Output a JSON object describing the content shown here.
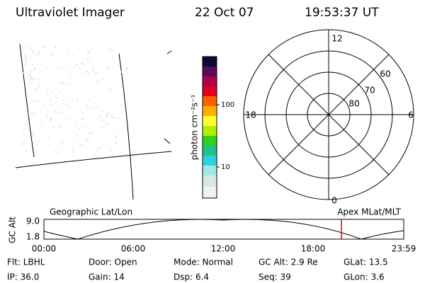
{
  "header": {
    "title": "Ultraviolet Imager",
    "date": "22 Oct 07",
    "time": "19:53:37 UT"
  },
  "colorbar": {
    "label": "photon cm⁻²s⁻¹",
    "ticks": [
      "100",
      "10"
    ]
  },
  "polar": {
    "mlt_labels": [
      "12",
      "18",
      "6",
      "0"
    ],
    "lat_labels": [
      "60",
      "70",
      "80"
    ]
  },
  "orbit": {
    "left_label": "Geographic Lat/Lon",
    "right_label": "Apex MLat/MLT",
    "axis_label": "GC Alt",
    "yticks": [
      "9.0",
      "1.8"
    ],
    "xticks": [
      "00:00",
      "06:00",
      "12:00",
      "18:00",
      "23:59"
    ]
  },
  "footer": {
    "rows": [
      [
        "Flt: LBHL",
        "Door: Open",
        "Mode: Normal",
        "GC Alt: 2.9 Re",
        "GLat: 13.5"
      ],
      [
        "IP: 36.0",
        "Gain: 14",
        "Dsp: 6.4",
        "Seq: 39",
        "GLon: 3.6"
      ]
    ]
  }
}
